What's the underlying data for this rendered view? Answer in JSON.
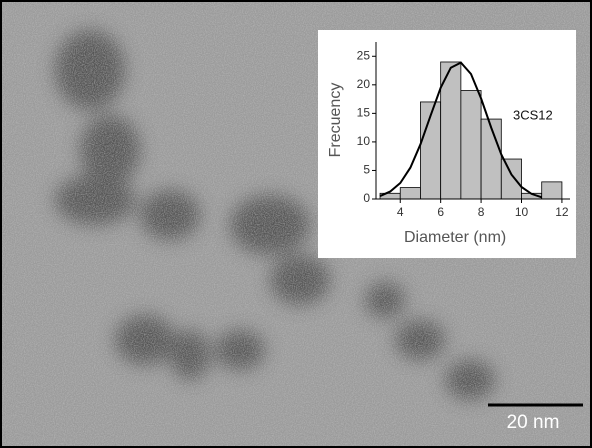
{
  "chart_data": {
    "type": "histogram",
    "label": "3CS12",
    "xlabel": "Diameter (nm)",
    "ylabel": "Frecuency",
    "bins": [
      3,
      4,
      5,
      6,
      7,
      8,
      9,
      10,
      11,
      12
    ],
    "counts": [
      1,
      2,
      17,
      24,
      19,
      14,
      7,
      1,
      3
    ],
    "color": "#c0c0c0",
    "xlim": [
      2.8,
      12.4
    ],
    "ylim": [
      0,
      27.5
    ],
    "xticks": [
      4,
      6,
      8,
      10,
      12
    ],
    "yticks": [
      0,
      5,
      10,
      15,
      20,
      25
    ],
    "fit": {
      "x": [
        3,
        3.5,
        4,
        4.5,
        5,
        5.5,
        6,
        6.5,
        7,
        7.5,
        8,
        8.5,
        9,
        9.5,
        10,
        10.5,
        11
      ],
      "values": [
        0.5,
        1.3,
        2.8,
        5.5,
        9.6,
        14.6,
        19.5,
        23.0,
        23.9,
        21.9,
        17.6,
        12.5,
        7.8,
        4.3,
        2.1,
        0.9,
        0.3
      ],
      "color": "#000000"
    }
  },
  "scale_bar": {
    "label": "20 nm"
  }
}
